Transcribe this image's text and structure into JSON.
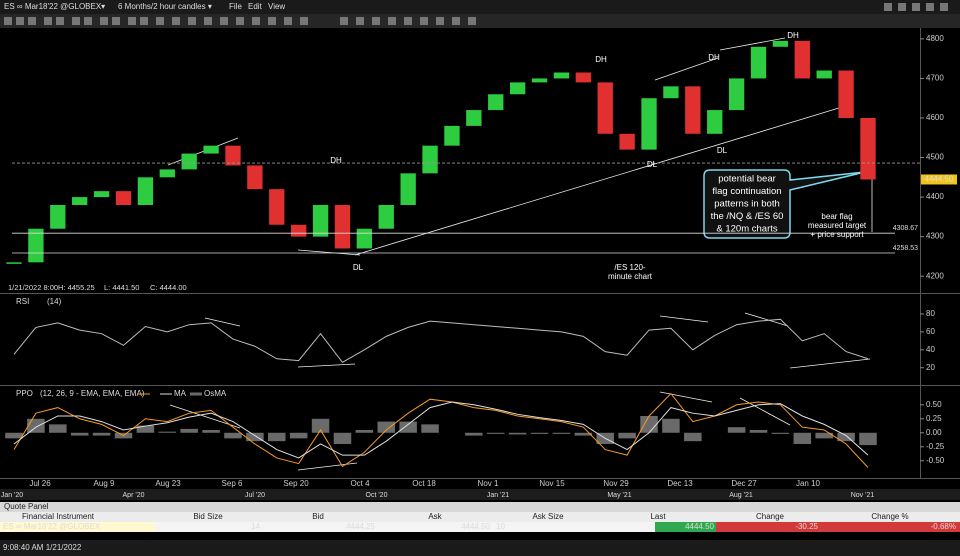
{
  "title_bar": {
    "instrument": "ES ∞ Mar18'22 @GLOBEX▾",
    "period": "6 Months/2 hour candles ▾",
    "menu": [
      "File",
      "Edit",
      "View"
    ]
  },
  "chart_data": [
    {
      "type": "candle",
      "up_color": "#2ecc40",
      "down_color": "#e03030",
      "values": [
        4235,
        4320,
        4380,
        4400,
        4415,
        4380,
        4450,
        4470,
        4510,
        4530,
        4480,
        4420,
        4330,
        4300,
        4380,
        4270,
        4320,
        4380,
        4460,
        4530,
        4580,
        4620,
        4660,
        4690,
        4700,
        4715,
        4690,
        4560,
        4520,
        4650,
        4680,
        4560,
        4620,
        4700,
        4780,
        4795,
        4700,
        4720,
        4600,
        4444.5
      ],
      "ylim": [
        4160,
        4825
      ],
      "yticks": [
        4200,
        4300,
        4400,
        4500,
        4600,
        4700,
        4800
      ],
      "xticks": [
        "Jul 26",
        "Aug 9",
        "Aug 23",
        "Sep 6",
        "Sep 20",
        "Oct 4",
        "Oct 18",
        "Nov 1",
        "Nov 15",
        "Nov 29",
        "Dec 13",
        "Dec 27",
        "Jan 10"
      ],
      "levels": [
        4308.67,
        4258.53
      ],
      "reference_line": 4486,
      "last": {
        "value": 4444.5,
        "label": "4444.50"
      },
      "info": [
        "1/21/2022 8:00",
        "H: 4455.25",
        "L: 4441.50",
        "C: 4444.00"
      ],
      "annotations": {
        "dh": [
          "DH",
          "DH",
          "DH",
          "DH"
        ],
        "dl": [
          "DL",
          "DL",
          "DL"
        ],
        "callout": [
          "potential bear",
          "flag continuation",
          "patterns in both",
          "the /NQ & /ES 60",
          "& 120m charts"
        ],
        "target": [
          "bear flag",
          "measured target",
          "+ price support"
        ],
        "label": [
          "/ES 120-",
          "minute chart"
        ]
      }
    },
    {
      "type": "line",
      "params": "(14)",
      "ylim": [
        3,
        100
      ],
      "yticks": [
        20,
        40,
        60,
        80
      ],
      "series": [
        {
          "name": "RSI",
          "color": "#bdbdbd",
          "values": [
            35,
            65,
            70,
            62,
            58,
            45,
            66,
            60,
            68,
            70,
            52,
            44,
            30,
            28,
            58,
            26,
            40,
            55,
            65,
            72,
            70,
            68,
            66,
            64,
            62,
            60,
            55,
            38,
            34,
            62,
            64,
            40,
            56,
            68,
            72,
            74,
            50,
            58,
            38,
            30
          ]
        }
      ]
    },
    {
      "type": "line",
      "params": "(12, 26, 9 - EMA, EMA, EMA)",
      "ylim": [
        -0.79,
        0.8
      ],
      "yticks": [
        {
          "value": -0.5,
          "label": "-0.50"
        },
        -0.25,
        {
          "value": 0,
          "label": "0.00"
        },
        0.25,
        {
          "value": 0.5,
          "label": "0.50"
        }
      ],
      "series": [
        {
          "name": "PPO",
          "color": "#f59a23",
          "values": [
            -0.3,
            0.35,
            0.45,
            0.25,
            0.15,
            -0.05,
            0.25,
            0.2,
            0.35,
            0.4,
            0.1,
            -0.2,
            -0.45,
            -0.55,
            0.05,
            -0.6,
            -0.35,
            0.05,
            0.35,
            0.6,
            0.55,
            0.45,
            0.4,
            0.3,
            0.25,
            0.2,
            0.1,
            -0.3,
            -0.4,
            0.3,
            0.7,
            0.2,
            0.3,
            0.5,
            0.55,
            0.5,
            0.1,
            0.05,
            -0.2,
            -0.62
          ]
        },
        {
          "name": "MA",
          "color": "#e0e0e0",
          "values": [
            -0.2,
            0.1,
            0.3,
            0.3,
            0.2,
            0.05,
            0.12,
            0.18,
            0.28,
            0.35,
            0.2,
            -0.05,
            -0.3,
            -0.45,
            -0.2,
            -0.4,
            -0.4,
            -0.15,
            0.15,
            0.45,
            0.55,
            0.5,
            0.42,
            0.33,
            0.27,
            0.22,
            0.15,
            -0.1,
            -0.3,
            0.0,
            0.45,
            0.35,
            0.3,
            0.4,
            0.5,
            0.52,
            0.3,
            0.15,
            -0.05,
            -0.4
          ]
        },
        {
          "name": "OsMA",
          "color": "#6a6a6a",
          "type": "bar",
          "values": [
            -0.1,
            0.25,
            0.15,
            -0.05,
            -0.05,
            -0.1,
            0.13,
            0.02,
            0.07,
            0.05,
            -0.1,
            -0.15,
            -0.15,
            -0.1,
            0.25,
            -0.2,
            0.05,
            0.2,
            0.2,
            0.15,
            0,
            -0.05,
            -0.02,
            -0.03,
            -0.02,
            -0.02,
            -0.05,
            -0.2,
            -0.1,
            0.3,
            0.25,
            -0.15,
            0,
            0.1,
            0.05,
            -0.02,
            -0.2,
            -0.1,
            -0.15,
            -0.22
          ]
        }
      ]
    }
  ],
  "overview": [
    "Jan '20",
    "Apr '20",
    "Jul '20",
    "Oct '20",
    "Jan '21",
    "May '21",
    "Aug '21",
    "Nov '21"
  ],
  "quote_panel": {
    "title": "Quote Panel",
    "header": [
      "Financial Instrument",
      "Bid Size",
      "Bid",
      "Ask",
      "Ask Size",
      "Last",
      "Change",
      "Change %"
    ],
    "row": [
      "ES ∞ Mar18'22 @GLOBEX",
      "14",
      "4444.25",
      "4444.50",
      "10",
      "4444.50",
      "-30.25",
      "-0.68%"
    ]
  },
  "status_bar": "9:08:40 AM 1/21/2022"
}
